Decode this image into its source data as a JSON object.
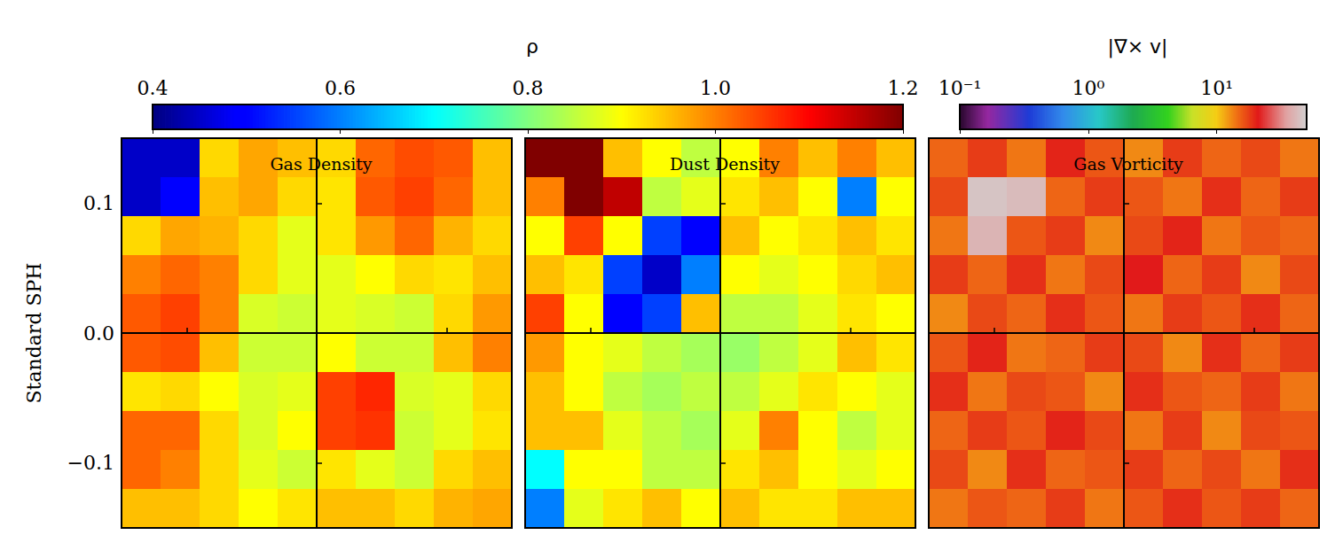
{
  "chart_data": {
    "type": "heatmap",
    "ylabel": "Standard SPH",
    "xlim": [
      -0.15,
      0.15
    ],
    "ylim": [
      -0.15,
      0.15
    ],
    "xticks": [
      -0.1,
      0,
      0.1
    ],
    "yticks": [
      {
        "value": -0.1,
        "label": "−0.1"
      },
      {
        "value": 0,
        "label": "0.0"
      },
      {
        "value": 0.1,
        "label": "0.1"
      }
    ],
    "tick_labels": "y",
    "x": [
      -0.135,
      -0.105,
      -0.075,
      -0.045,
      -0.015,
      0.015,
      0.045,
      0.075,
      0.105,
      0.135
    ],
    "y": [
      0.135,
      0.105,
      0.075,
      0.045,
      0.015,
      -0.015,
      -0.045,
      -0.075,
      -0.105,
      -0.135
    ],
    "colorbars": [
      {
        "label": "ρ",
        "range": [
          0.4,
          1.2
        ],
        "ticks": [
          0.4,
          0.6,
          0.8,
          {
            "value": 1,
            "label": "1.0"
          },
          1.2
        ],
        "panels": [
          {
            "title": "Gas Density",
            "cells": [
              [
                0.45,
                0.45,
                0.93,
                0.97,
                0.95,
                0.93,
                1.02,
                1.04,
                1.03,
                0.95
              ],
              [
                0.45,
                0.5,
                0.95,
                0.97,
                0.93,
                0.92,
                1.03,
                1.05,
                1.02,
                0.95
              ],
              [
                0.93,
                0.97,
                0.96,
                0.93,
                0.88,
                0.92,
                0.98,
                1.02,
                0.96,
                0.93
              ],
              [
                1.0,
                1.02,
                1.0,
                0.93,
                0.88,
                0.88,
                0.9,
                0.93,
                0.92,
                0.95
              ],
              [
                1.03,
                1.05,
                1.0,
                0.87,
                0.86,
                0.88,
                0.87,
                0.86,
                0.93,
                0.98
              ],
              [
                1.03,
                1.04,
                0.95,
                0.86,
                0.86,
                0.9,
                0.86,
                0.86,
                0.95,
                1.0
              ],
              [
                0.92,
                0.93,
                0.9,
                0.87,
                0.88,
                1.05,
                1.07,
                0.87,
                0.88,
                0.93
              ],
              [
                1.02,
                1.02,
                0.93,
                0.87,
                0.9,
                1.05,
                1.06,
                0.86,
                0.88,
                0.92
              ],
              [
                1.02,
                1.0,
                0.93,
                0.88,
                0.86,
                0.92,
                0.88,
                0.86,
                0.93,
                0.95
              ],
              [
                0.95,
                0.95,
                0.93,
                0.9,
                0.92,
                0.95,
                0.95,
                0.93,
                0.96,
                0.97
              ]
            ]
          },
          {
            "title": "Dust Density",
            "cells": [
              [
                1.2,
                1.25,
                0.95,
                0.9,
                0.85,
                0.9,
                1.0,
                0.95,
                1.0,
                0.95
              ],
              [
                1.0,
                1.2,
                1.15,
                0.85,
                0.88,
                0.92,
                0.95,
                0.9,
                0.6,
                0.9
              ],
              [
                0.9,
                1.05,
                0.9,
                0.55,
                0.5,
                0.95,
                0.9,
                0.92,
                0.95,
                0.92
              ],
              [
                0.95,
                0.92,
                0.55,
                0.45,
                0.6,
                0.9,
                0.88,
                0.9,
                0.93,
                0.95
              ],
              [
                1.05,
                0.9,
                0.5,
                0.55,
                0.95,
                0.85,
                0.85,
                0.88,
                0.92,
                0.9
              ],
              [
                0.98,
                0.9,
                0.88,
                0.85,
                0.83,
                0.82,
                0.85,
                0.88,
                0.95,
                0.92
              ],
              [
                0.95,
                0.9,
                0.85,
                0.83,
                0.85,
                0.85,
                0.88,
                0.92,
                0.9,
                0.88
              ],
              [
                0.95,
                0.95,
                0.88,
                0.85,
                0.83,
                0.88,
                1.0,
                0.9,
                0.85,
                0.88
              ],
              [
                0.7,
                0.9,
                0.9,
                0.85,
                0.85,
                0.92,
                0.95,
                0.9,
                0.88,
                0.9
              ],
              [
                0.6,
                0.88,
                0.92,
                0.95,
                0.9,
                0.95,
                0.92,
                0.92,
                0.95,
                0.95
              ]
            ]
          }
        ]
      },
      {
        "label": "|∇× v|",
        "range": [
          0.1,
          50
        ],
        "log": true,
        "ticks": [
          {
            "value": 0.1,
            "label": "10⁻¹"
          },
          {
            "value": 1,
            "label": "10⁰"
          },
          {
            "value": 10,
            "label": "10¹"
          }
        ],
        "panels": [
          {
            "title": "Gas Vorticity",
            "cells": [
              [
                15,
                18,
                14,
                20,
                16,
                13,
                18,
                15,
                17,
                14
              ],
              [
                17,
                45,
                42,
                15,
                18,
                16,
                14,
                19,
                15,
                18
              ],
              [
                14,
                40,
                16,
                18,
                13,
                17,
                20,
                14,
                16,
                15
              ],
              [
                18,
                15,
                19,
                14,
                17,
                21,
                15,
                18,
                13,
                17
              ],
              [
                13,
                17,
                15,
                19,
                16,
                14,
                18,
                16,
                19,
                15
              ],
              [
                16,
                20,
                14,
                15,
                18,
                17,
                13,
                19,
                15,
                18
              ],
              [
                19,
                14,
                17,
                16,
                13,
                19,
                16,
                15,
                18,
                14
              ],
              [
                15,
                18,
                16,
                20,
                17,
                14,
                18,
                13,
                17,
                16
              ],
              [
                17,
                13,
                19,
                15,
                16,
                18,
                15,
                17,
                14,
                19
              ],
              [
                14,
                16,
                15,
                18,
                14,
                16,
                19,
                16,
                18,
                15
              ]
            ]
          }
        ]
      }
    ]
  }
}
